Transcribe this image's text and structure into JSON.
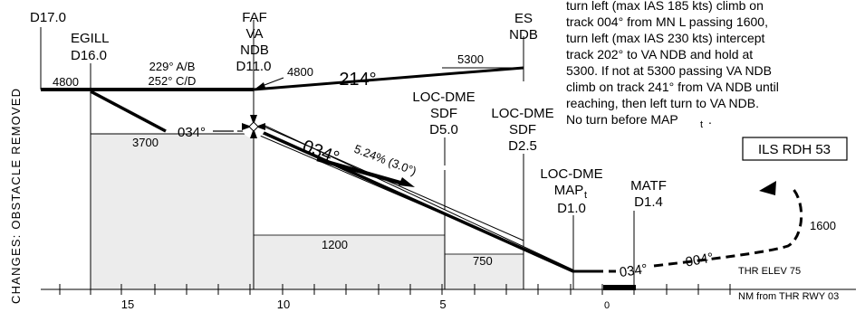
{
  "side_label": "CHANGES: OBSTACLE REMOVED",
  "fixes": {
    "d17": "D17.0",
    "egill_name": "EGILL",
    "egill_dist": "D16.0",
    "faf_1": "FAF",
    "faf_2": "VA",
    "faf_3": "NDB",
    "faf_dist": "D11.0",
    "es_1": "ES",
    "es_2": "NDB",
    "sdf5_1": "LOC-DME",
    "sdf5_2": "SDF",
    "sdf5_dist": "D5.0",
    "sdf25_1": "LOC-DME",
    "sdf25_2": "SDF",
    "sdf25_dist": "D2.5",
    "map_1": "LOC-DME",
    "map_2": "MAP",
    "map_sub": "t",
    "map_dist": "D1.0",
    "matf_1": "MATF",
    "matf_dist": "D1.4"
  },
  "altitudes": {
    "a4800_left": "4800",
    "a4800_faf": "4800",
    "a5300": "5300",
    "a3700": "3700",
    "a1200": "1200",
    "a750": "750",
    "a1600": "1600",
    "ab_line": "229° A/B",
    "cd_line": "252° C/D"
  },
  "tracks": {
    "t214": "214°",
    "t034_initial": "034°",
    "t034_final": "034°",
    "t034_missed": "034°",
    "t004": "004°",
    "glide": "5.24% (3.0°)"
  },
  "missed_note": [
    "turn left (max IAS 185 kts) climb on",
    "track 004° from MN L passing 1600,",
    "turn left (max IAS 230 kts) intercept",
    "track 202° to VA NDB and hold at",
    "5300.  If not at 5300 passing VA NDB",
    "climb on track 241° from VA NDB until",
    "reaching, then left turn to VA NDB.",
    "No turn before MAP"
  ],
  "missed_note_sub": "t",
  "missed_note_end": ".",
  "rdh": "ILS RDH 53",
  "thr_elev": "THR ELEV 75",
  "axis_label": "NM from THR RWY 03",
  "ticks": [
    "15",
    "10",
    "5",
    "0"
  ]
}
